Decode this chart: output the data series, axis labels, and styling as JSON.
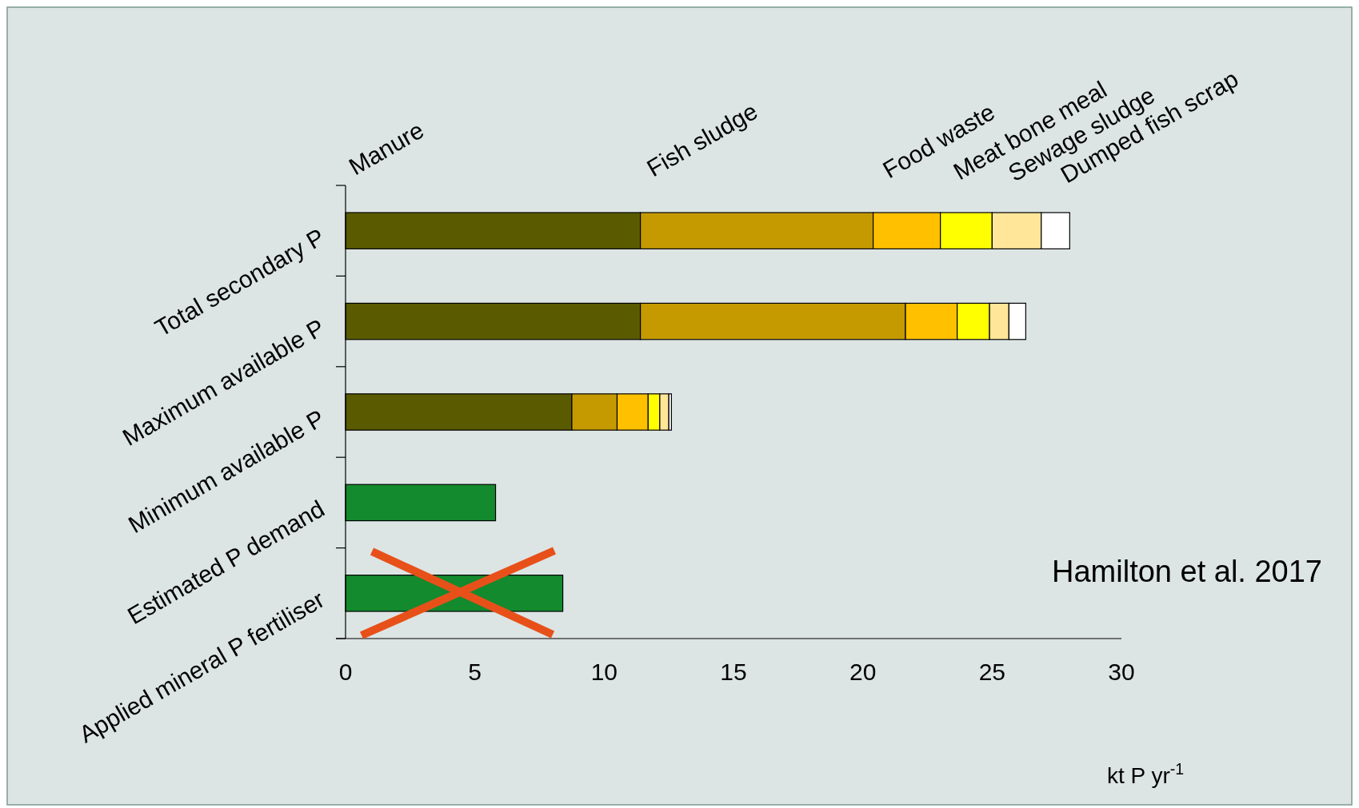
{
  "chart_data": {
    "type": "bar",
    "orientation": "horizontal",
    "stacked": true,
    "categories": [
      "Total secondary P",
      "Maximum available P",
      "Minimum available P",
      "Estimated P demand",
      "Applied mineral P fertiliser"
    ],
    "series": [
      {
        "name": "Manure",
        "color": "#5a5a00",
        "values": [
          11.4,
          11.4,
          8.75,
          null,
          null
        ]
      },
      {
        "name": "Fish sludge",
        "color": "#c59a00",
        "values": [
          9.0,
          10.25,
          1.75,
          null,
          null
        ]
      },
      {
        "name": "Food waste",
        "color": "#ffc000",
        "values": [
          2.6,
          2.0,
          1.2,
          null,
          null
        ]
      },
      {
        "name": "Meat bone meal",
        "color": "#ffff00",
        "values": [
          2.0,
          1.25,
          0.45,
          null,
          null
        ]
      },
      {
        "name": "Sewage sludge",
        "color": "#ffe699",
        "values": [
          1.9,
          0.75,
          0.35,
          null,
          null
        ]
      },
      {
        "name": "Dumped fish scrap",
        "color": "#ffffff",
        "values": [
          1.1,
          0.65,
          0.1,
          null,
          null
        ]
      },
      {
        "color": "#138a2e",
        "values": [
          null,
          null,
          null,
          5.8,
          8.4
        ]
      }
    ],
    "xlim": [
      0,
      30
    ],
    "xticks": [
      0,
      5,
      10,
      15,
      20,
      25,
      30
    ],
    "xlabel": "kt P yr$^{-1}$",
    "annotations": [
      "Hamilton et al. 2017"
    ]
  }
}
